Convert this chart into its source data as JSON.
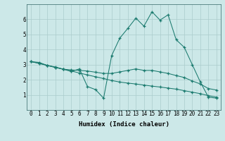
{
  "xlabel": "Humidex (Indice chaleur)",
  "ylabel": "",
  "bg_color": "#cce8e8",
  "line_color": "#1a7a6e",
  "grid_color": "#aacccc",
  "x": [
    0,
    1,
    2,
    3,
    4,
    5,
    6,
    7,
    8,
    9,
    10,
    11,
    12,
    13,
    14,
    15,
    16,
    17,
    18,
    19,
    20,
    21,
    22,
    23
  ],
  "line1": [
    3.2,
    3.15,
    2.95,
    2.85,
    2.7,
    2.55,
    2.72,
    1.55,
    1.35,
    0.78,
    3.6,
    4.75,
    5.4,
    6.08,
    5.55,
    6.5,
    5.95,
    6.3,
    4.65,
    4.15,
    3.0,
    1.85,
    0.85,
    0.78
  ],
  "line2": [
    3.2,
    3.1,
    2.95,
    2.82,
    2.7,
    2.65,
    2.62,
    2.58,
    2.5,
    2.42,
    2.42,
    2.52,
    2.62,
    2.72,
    2.62,
    2.62,
    2.52,
    2.42,
    2.28,
    2.15,
    1.92,
    1.72,
    1.42,
    1.32
  ],
  "line3": [
    3.2,
    3.08,
    2.95,
    2.82,
    2.7,
    2.58,
    2.45,
    2.32,
    2.2,
    2.08,
    1.95,
    1.85,
    1.78,
    1.72,
    1.65,
    1.58,
    1.52,
    1.45,
    1.38,
    1.28,
    1.18,
    1.08,
    0.95,
    0.85
  ],
  "xlim": [
    -0.5,
    23.5
  ],
  "ylim": [
    0,
    7
  ],
  "yticks": [
    1,
    2,
    3,
    4,
    5,
    6
  ],
  "xticks": [
    0,
    1,
    2,
    3,
    4,
    5,
    6,
    7,
    8,
    9,
    10,
    11,
    12,
    13,
    14,
    15,
    16,
    17,
    18,
    19,
    20,
    21,
    22,
    23
  ],
  "label_fontsize": 6.5,
  "tick_fontsize": 5.5
}
